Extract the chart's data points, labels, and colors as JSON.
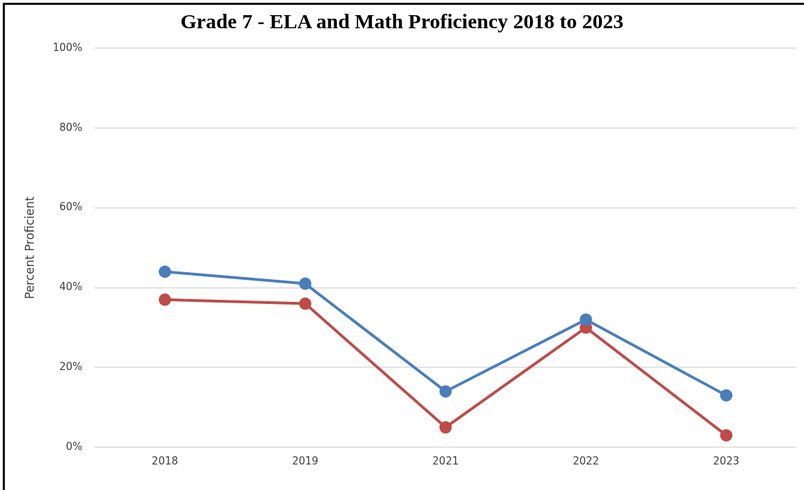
{
  "chart_data": {
    "type": "line",
    "title": "Grade 7 - ELA and Math Proficiency 2018 to 2023",
    "ylabel": "Percent Proficient",
    "categories": [
      "2018",
      "2019",
      "2021",
      "2022",
      "2023"
    ],
    "series": [
      {
        "color": "#4a7ebb",
        "values": [
          44,
          41,
          14,
          32,
          13
        ]
      },
      {
        "color": "#be4b48",
        "values": [
          37,
          36,
          5,
          30,
          3
        ]
      }
    ],
    "ylim": [
      0,
      100
    ],
    "yticks": [
      {
        "value": 0,
        "label": "0%"
      },
      {
        "value": 20,
        "label": "20%"
      },
      {
        "value": 40,
        "label": "40%"
      },
      {
        "value": 60,
        "label": "60%"
      },
      {
        "value": 80,
        "label": "80%"
      },
      {
        "value": 100,
        "label": "100%"
      }
    ],
    "grid": "y",
    "legend": false,
    "marker": "circle",
    "line_style": "solid"
  }
}
